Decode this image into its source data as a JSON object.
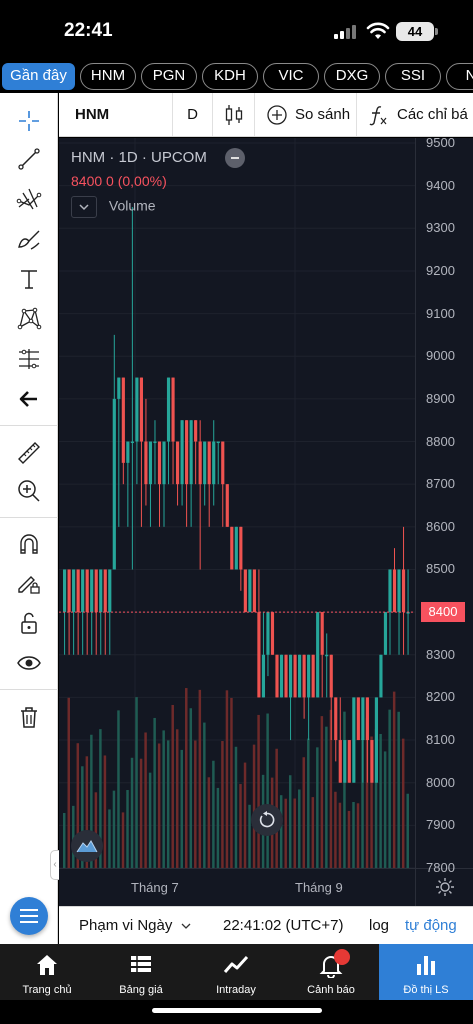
{
  "status_bar": {
    "time": "22:41",
    "battery": "44"
  },
  "tickers": [
    "Gần đây",
    "HNM",
    "PGN",
    "KDH",
    "VIC",
    "DXG",
    "SSI",
    "N"
  ],
  "chart_toolbar": {
    "symbol": "HNM",
    "interval": "D",
    "compare_label": "So sánh",
    "indicators_label": "Các chỉ bá"
  },
  "legend": {
    "title": "HNM · 1D · UPCOM",
    "ohlc": "8400  0 (0,00%)",
    "volume_label": "Volume"
  },
  "price_axis": [
    "9500",
    "9400",
    "9300",
    "9200",
    "9100",
    "9000",
    "8900",
    "8800",
    "8700",
    "8600",
    "8500",
    "8400",
    "8300",
    "8200",
    "8100",
    "8000",
    "7900",
    "7800"
  ],
  "last_price": "8400",
  "time_axis": [
    "Tháng 7",
    "Tháng 9"
  ],
  "infobar": {
    "range_label": "Phạm vi Ngày",
    "clock": "22:41:02 (UTC+7)",
    "log_label": "log",
    "auto_label": "tự động"
  },
  "bottom_nav": [
    {
      "label": "Trang chủ",
      "icon": "home-icon"
    },
    {
      "label": "Bảng giá",
      "icon": "price-board-icon"
    },
    {
      "label": "Intraday",
      "icon": "intraday-icon"
    },
    {
      "label": "Cảnh báo",
      "icon": "bell-icon"
    },
    {
      "label": "Đồ thị LS",
      "icon": "bar-chart-icon"
    }
  ],
  "colors": {
    "up": "#26a69a",
    "down": "#ef5350",
    "accent": "#2f7fd6",
    "background": "#131722"
  },
  "chart_data": {
    "type": "candlestick",
    "symbol": "HNM",
    "interval": "1D",
    "exchange": "UPCOM",
    "ylim": [
      7800,
      9500
    ],
    "x_labels": [
      "Tháng 7",
      "Tháng 9"
    ],
    "candles": [
      {
        "o": 8400,
        "h": 8500,
        "l": 8300,
        "c": 8500
      },
      {
        "o": 8500,
        "h": 8500,
        "l": 8300,
        "c": 8400
      },
      {
        "o": 8400,
        "h": 8500,
        "l": 8300,
        "c": 8500
      },
      {
        "o": 8500,
        "h": 8500,
        "l": 8300,
        "c": 8400
      },
      {
        "o": 8400,
        "h": 8500,
        "l": 8300,
        "c": 8500
      },
      {
        "o": 8500,
        "h": 8500,
        "l": 8300,
        "c": 8400
      },
      {
        "o": 8400,
        "h": 8500,
        "l": 8300,
        "c": 8500
      },
      {
        "o": 8500,
        "h": 8500,
        "l": 8300,
        "c": 8400
      },
      {
        "o": 8400,
        "h": 8500,
        "l": 8300,
        "c": 8500
      },
      {
        "o": 8500,
        "h": 8500,
        "l": 8300,
        "c": 8400
      },
      {
        "o": 8400,
        "h": 8500,
        "l": 8300,
        "c": 8500
      },
      {
        "o": 8500,
        "h": 9050,
        "l": 8500,
        "c": 8900
      },
      {
        "o": 8900,
        "h": 8950,
        "l": 8600,
        "c": 8950
      },
      {
        "o": 8950,
        "h": 8950,
        "l": 8700,
        "c": 8750
      },
      {
        "o": 8750,
        "h": 8800,
        "l": 8600,
        "c": 8800
      },
      {
        "o": 8800,
        "h": 9350,
        "l": 8500,
        "c": 8800
      },
      {
        "o": 8800,
        "h": 8950,
        "l": 8700,
        "c": 8950
      },
      {
        "o": 8950,
        "h": 8950,
        "l": 8600,
        "c": 8800
      },
      {
        "o": 8800,
        "h": 8900,
        "l": 8650,
        "c": 8700
      },
      {
        "o": 8700,
        "h": 8800,
        "l": 8600,
        "c": 8800
      },
      {
        "o": 8800,
        "h": 8850,
        "l": 8700,
        "c": 8800
      },
      {
        "o": 8800,
        "h": 8800,
        "l": 8600,
        "c": 8700
      },
      {
        "o": 8700,
        "h": 8800,
        "l": 8600,
        "c": 8800
      },
      {
        "o": 8800,
        "h": 8950,
        "l": 8700,
        "c": 8950
      },
      {
        "o": 8950,
        "h": 8950,
        "l": 8700,
        "c": 8800
      },
      {
        "o": 8800,
        "h": 8800,
        "l": 8650,
        "c": 8700
      },
      {
        "o": 8700,
        "h": 8850,
        "l": 8650,
        "c": 8850
      },
      {
        "o": 8850,
        "h": 8850,
        "l": 8600,
        "c": 8700
      },
      {
        "o": 8700,
        "h": 8850,
        "l": 8600,
        "c": 8850
      },
      {
        "o": 8850,
        "h": 8850,
        "l": 8700,
        "c": 8800
      },
      {
        "o": 8800,
        "h": 8850,
        "l": 8500,
        "c": 8700
      },
      {
        "o": 8700,
        "h": 8800,
        "l": 8650,
        "c": 8800
      },
      {
        "o": 8800,
        "h": 8800,
        "l": 8600,
        "c": 8700
      },
      {
        "o": 8700,
        "h": 8850,
        "l": 8650,
        "c": 8800
      },
      {
        "o": 8800,
        "h": 8800,
        "l": 8700,
        "c": 8800
      },
      {
        "o": 8800,
        "h": 8800,
        "l": 8600,
        "c": 8700
      },
      {
        "o": 8700,
        "h": 8700,
        "l": 8600,
        "c": 8600
      },
      {
        "o": 8600,
        "h": 8600,
        "l": 8500,
        "c": 8500
      },
      {
        "o": 8500,
        "h": 8600,
        "l": 8500,
        "c": 8600
      },
      {
        "o": 8600,
        "h": 8600,
        "l": 8450,
        "c": 8500
      },
      {
        "o": 8500,
        "h": 8500,
        "l": 8400,
        "c": 8400
      },
      {
        "o": 8400,
        "h": 8500,
        "l": 8400,
        "c": 8500
      },
      {
        "o": 8500,
        "h": 8500,
        "l": 8400,
        "c": 8400
      },
      {
        "o": 8400,
        "h": 8500,
        "l": 8200,
        "c": 8200
      },
      {
        "o": 8200,
        "h": 8400,
        "l": 8200,
        "c": 8300
      },
      {
        "o": 8300,
        "h": 8400,
        "l": 8250,
        "c": 8400
      },
      {
        "o": 8400,
        "h": 8400,
        "l": 8300,
        "c": 8300
      },
      {
        "o": 8300,
        "h": 8300,
        "l": 8200,
        "c": 8200
      },
      {
        "o": 8200,
        "h": 8300,
        "l": 8200,
        "c": 8300
      },
      {
        "o": 8300,
        "h": 8300,
        "l": 8200,
        "c": 8200
      },
      {
        "o": 8200,
        "h": 8300,
        "l": 8100,
        "c": 8300
      },
      {
        "o": 8300,
        "h": 8300,
        "l": 8200,
        "c": 8200
      },
      {
        "o": 8200,
        "h": 8300,
        "l": 8200,
        "c": 8300
      },
      {
        "o": 8300,
        "h": 8300,
        "l": 8150,
        "c": 8200
      },
      {
        "o": 8200,
        "h": 8300,
        "l": 8100,
        "c": 8300
      },
      {
        "o": 8300,
        "h": 8300,
        "l": 8200,
        "c": 8200
      },
      {
        "o": 8200,
        "h": 8400,
        "l": 8200,
        "c": 8400
      },
      {
        "o": 8400,
        "h": 8400,
        "l": 8200,
        "c": 8300
      },
      {
        "o": 8300,
        "h": 8350,
        "l": 8200,
        "c": 8300
      },
      {
        "o": 8300,
        "h": 8300,
        "l": 8100,
        "c": 8200
      },
      {
        "o": 8200,
        "h": 8200,
        "l": 8050,
        "c": 8100
      },
      {
        "o": 8100,
        "h": 8200,
        "l": 8000,
        "c": 8000
      },
      {
        "o": 8000,
        "h": 8100,
        "l": 8000,
        "c": 8100
      },
      {
        "o": 8100,
        "h": 8100,
        "l": 8000,
        "c": 8000
      },
      {
        "o": 8000,
        "h": 8200,
        "l": 8000,
        "c": 8200
      },
      {
        "o": 8200,
        "h": 8200,
        "l": 8100,
        "c": 8100
      },
      {
        "o": 8100,
        "h": 8200,
        "l": 8000,
        "c": 8200
      },
      {
        "o": 8200,
        "h": 8200,
        "l": 8000,
        "c": 8100
      },
      {
        "o": 8100,
        "h": 8100,
        "l": 8000,
        "c": 8000
      },
      {
        "o": 8000,
        "h": 8200,
        "l": 8000,
        "c": 8200
      },
      {
        "o": 8200,
        "h": 8300,
        "l": 8200,
        "c": 8300
      },
      {
        "o": 8300,
        "h": 8400,
        "l": 8300,
        "c": 8400
      },
      {
        "o": 8400,
        "h": 8500,
        "l": 8300,
        "c": 8500
      },
      {
        "o": 8500,
        "h": 8550,
        "l": 8400,
        "c": 8400
      },
      {
        "o": 8400,
        "h": 8500,
        "l": 8300,
        "c": 8500
      },
      {
        "o": 8500,
        "h": 8600,
        "l": 8300,
        "c": 8400
      },
      {
        "o": 8400,
        "h": 8500,
        "l": 8300,
        "c": 8400
      }
    ]
  }
}
